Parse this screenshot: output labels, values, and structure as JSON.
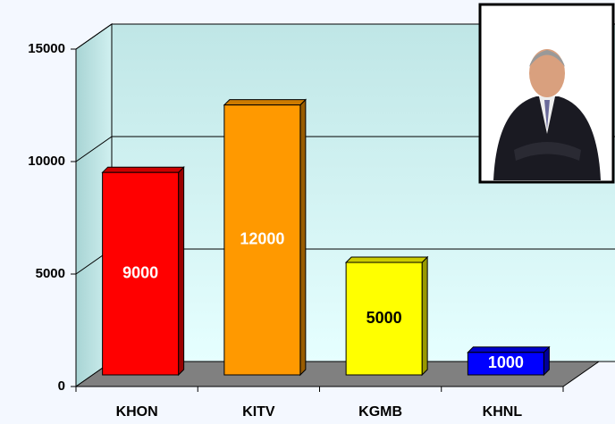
{
  "chart_data": {
    "type": "bar3d",
    "categories": [
      "KHON",
      "KITV",
      "KGMB",
      "KHNL"
    ],
    "values": [
      9000,
      12000,
      5000,
      1000
    ],
    "colors": [
      "#ff0000",
      "#ff9900",
      "#ffff00",
      "#0000ff"
    ],
    "label_colors": [
      "#ffffff",
      "#ffffff",
      "#000000",
      "#ffffff"
    ],
    "ylim": [
      0,
      15000
    ],
    "yticks": [
      0,
      5000,
      10000,
      15000
    ],
    "grid": true
  }
}
